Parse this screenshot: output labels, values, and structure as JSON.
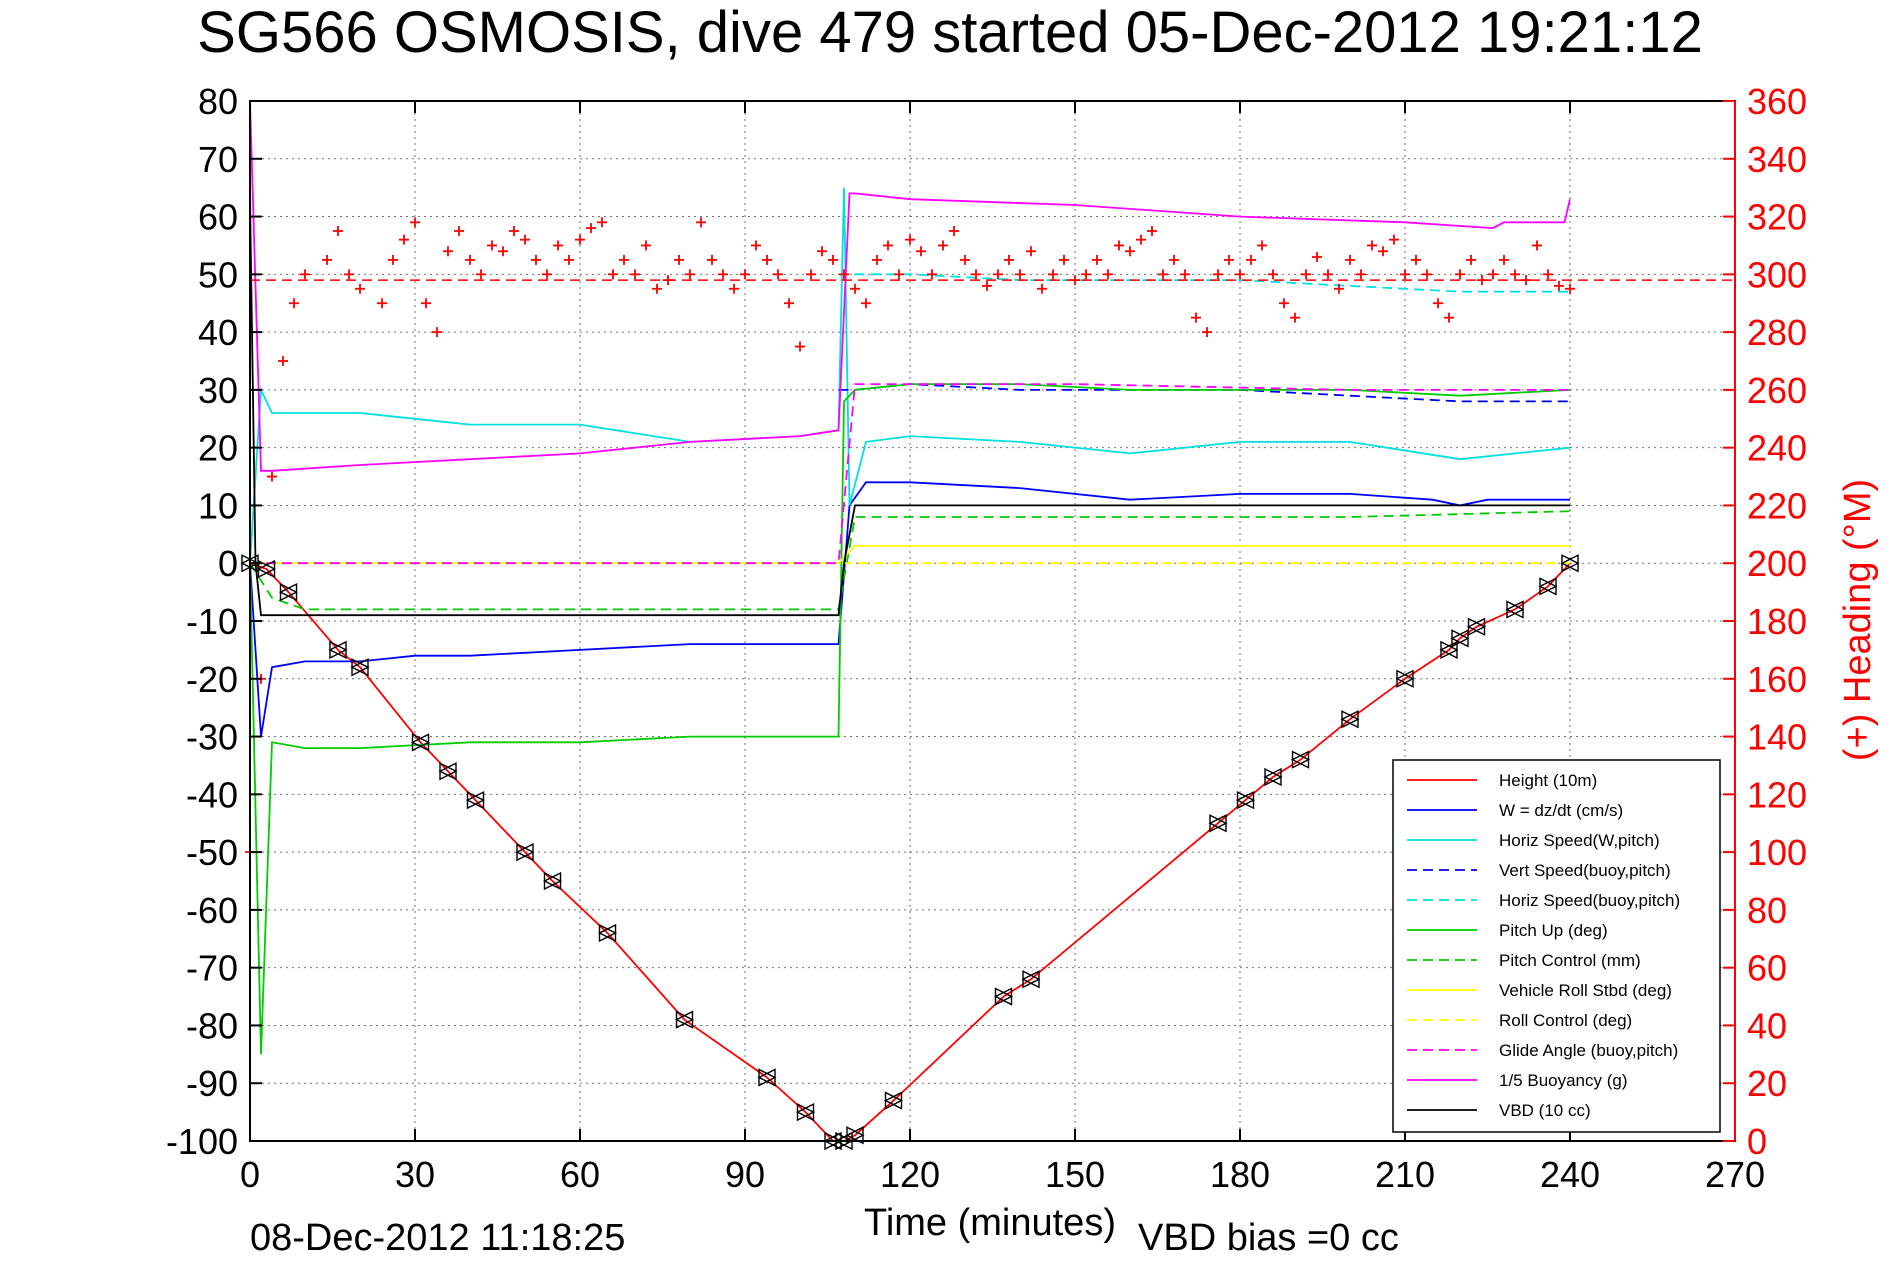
{
  "chart_data": {
    "type": "line",
    "title": "SG566 OSMOSIS, dive 479 started 05-Dec-2012 19:21:12",
    "xlabel": "Time (minutes)",
    "ylabel_right": "(+) Heading (°M)",
    "xlim": [
      0,
      270
    ],
    "ylim": [
      -100,
      80
    ],
    "ylim_right": [
      0,
      360
    ],
    "x_ticks": [
      "0",
      "30",
      "60",
      "90",
      "120",
      "150",
      "180",
      "210",
      "240",
      "270"
    ],
    "y_ticks": [
      "80",
      "70",
      "60",
      "50",
      "40",
      "30",
      "20",
      "10",
      "0",
      "-10",
      "-20",
      "-30",
      "-40",
      "-50",
      "-60",
      "-70",
      "-80",
      "-90",
      "-100"
    ],
    "y_right_ticks": [
      "360",
      "340",
      "320",
      "300",
      "280",
      "260",
      "240",
      "220",
      "200",
      "180",
      "160",
      "140",
      "120",
      "100",
      "80",
      "60",
      "40",
      "20",
      "0"
    ],
    "grid": true,
    "legend_position": "bottom-right",
    "footer_left": "08-Dec-2012 11:18:25",
    "footer_right": "VBD bias =0 cc",
    "series": [
      {
        "name": "Height (10m)",
        "color": "#ff0000",
        "style": "solid",
        "x": [
          0,
          3,
          7,
          16,
          20,
          31,
          36,
          41,
          50,
          55,
          65,
          79,
          94,
          101,
          106,
          108,
          110,
          117,
          137,
          142,
          176,
          181,
          186,
          191,
          200,
          210,
          218,
          220,
          223,
          230,
          236,
          240
        ],
        "y": [
          0,
          -1,
          -5,
          -15,
          -18,
          -31,
          -36,
          -41,
          -50,
          -55,
          -64,
          -79,
          -89,
          -95,
          -100,
          -100,
          -99,
          -93,
          -75,
          -72,
          -45,
          -41,
          -37,
          -34,
          -27,
          -20,
          -15,
          -13,
          -11,
          -8,
          -4,
          0
        ]
      },
      {
        "name": "W = dz/dt (cm/s)",
        "color": "#0000ff",
        "style": "solid",
        "x": [
          0,
          2,
          4,
          10,
          20,
          30,
          40,
          60,
          80,
          100,
          107,
          109,
          112,
          120,
          140,
          160,
          180,
          200,
          215,
          220,
          225,
          240
        ],
        "y": [
          0,
          -30,
          -18,
          -17,
          -17,
          -16,
          -16,
          -15,
          -14,
          -14,
          -14,
          10,
          14,
          14,
          13,
          11,
          12,
          12,
          11,
          10,
          11,
          11
        ]
      },
      {
        "name": "Horiz Speed(W,pitch)",
        "color": "#00e0e0",
        "style": "solid",
        "x": [
          0,
          2,
          4,
          10,
          20,
          30,
          40,
          60,
          80,
          100,
          107,
          108,
          109,
          112,
          120,
          140,
          160,
          180,
          200,
          220,
          240
        ],
        "y": [
          0,
          30,
          26,
          26,
          26,
          25,
          24,
          24,
          21,
          22,
          23,
          65,
          10,
          21,
          22,
          21,
          19,
          21,
          21,
          18,
          20
        ]
      },
      {
        "name": "Vert Speed(buoy,pitch)",
        "color": "#0000ff",
        "style": "dashed",
        "x": [
          107,
          110,
          120,
          140,
          160,
          180,
          200,
          220,
          240
        ],
        "y": [
          30,
          30,
          31,
          30,
          30,
          30,
          29,
          28,
          28
        ]
      },
      {
        "name": "Horiz Speed(buoy,pitch)",
        "color": "#00e0e0",
        "style": "dashed",
        "x": [
          107,
          110,
          120,
          140,
          160,
          180,
          200,
          220,
          240
        ],
        "y": [
          50,
          50,
          50,
          49,
          49,
          49,
          48,
          47,
          47
        ]
      },
      {
        "name": "Pitch Up (deg)",
        "color": "#00cc00",
        "style": "solid",
        "x": [
          0,
          2,
          4,
          10,
          20,
          40,
          60,
          80,
          100,
          106,
          107,
          108,
          110,
          120,
          140,
          160,
          180,
          200,
          220,
          240
        ],
        "y": [
          0,
          -85,
          -31,
          -32,
          -32,
          -31,
          -31,
          -30,
          -30,
          -30,
          -30,
          28,
          30,
          31,
          31,
          30,
          30,
          30,
          29,
          30
        ]
      },
      {
        "name": "Pitch Control (mm)",
        "color": "#00cc00",
        "style": "dashed",
        "x": [
          0,
          4,
          10,
          40,
          80,
          106,
          107,
          110,
          150,
          200,
          240
        ],
        "y": [
          0,
          -6,
          -8,
          -8,
          -8,
          -8,
          -8,
          8,
          8,
          8,
          9
        ]
      },
      {
        "name": "Vehicle Roll Stbd (deg)",
        "color": "#ffff00",
        "style": "solid",
        "x": [
          0,
          5,
          20,
          60,
          100,
          107,
          110,
          150,
          200,
          240
        ],
        "y": [
          0,
          0,
          0,
          0,
          0,
          0,
          3,
          3,
          3,
          3
        ]
      },
      {
        "name": "Roll Control (deg)",
        "color": "#ffff00",
        "style": "dashed",
        "x": [
          0,
          5,
          20,
          60,
          100,
          107,
          110,
          150,
          200,
          240
        ],
        "y": [
          0,
          0,
          0,
          0,
          0,
          0,
          0,
          0,
          0,
          0
        ]
      },
      {
        "name": "Glide Angle (buoy,pitch)",
        "color": "#ff00ff",
        "style": "dashed",
        "x": [
          0,
          107,
          110,
          150,
          200,
          240
        ],
        "y": [
          0,
          0,
          31,
          31,
          30,
          30
        ]
      },
      {
        "name": "1/5 Buoyancy (g)",
        "color": "#ff00ff",
        "style": "solid",
        "x": [
          0,
          2,
          4,
          20,
          40,
          60,
          80,
          100,
          107,
          109,
          110,
          120,
          150,
          180,
          210,
          226,
          228,
          239,
          240
        ],
        "y": [
          80,
          16,
          16,
          17,
          18,
          19,
          21,
          22,
          23,
          64,
          64,
          63,
          62,
          60,
          59,
          58,
          59,
          59,
          63
        ]
      },
      {
        "name": "VBD (10 cc)",
        "color": "#000000",
        "style": "solid",
        "x": [
          0,
          1,
          2,
          4,
          10,
          50,
          100,
          106,
          107,
          108,
          110,
          150,
          200,
          240
        ],
        "y": [
          63,
          0,
          -9,
          -9,
          -9,
          -9,
          -9,
          -9,
          -9,
          0,
          10,
          10,
          10,
          10
        ]
      }
    ],
    "heading": {
      "name": "(+) Heading",
      "color": "#ff0000",
      "marker": "+",
      "target": 298,
      "x": [
        0,
        2,
        4,
        6,
        8,
        10,
        14,
        16,
        18,
        20,
        24,
        26,
        28,
        30,
        32,
        34,
        36,
        38,
        40,
        42,
        44,
        46,
        48,
        50,
        52,
        54,
        56,
        58,
        60,
        62,
        64,
        66,
        68,
        70,
        72,
        74,
        76,
        78,
        80,
        82,
        84,
        86,
        88,
        90,
        92,
        94,
        96,
        98,
        100,
        102,
        104,
        106,
        108,
        110,
        112,
        114,
        116,
        118,
        120,
        122,
        124,
        126,
        128,
        130,
        132,
        134,
        136,
        138,
        140,
        142,
        144,
        146,
        148,
        150,
        152,
        154,
        156,
        158,
        160,
        162,
        164,
        166,
        168,
        170,
        172,
        174,
        176,
        178,
        180,
        182,
        184,
        186,
        188,
        190,
        192,
        194,
        196,
        198,
        200,
        202,
        204,
        206,
        208,
        210,
        212,
        214,
        216,
        218,
        220,
        222,
        224,
        226,
        228,
        230,
        232,
        234,
        236,
        238,
        240
      ],
      "y": [
        100,
        160,
        230,
        270,
        290,
        300,
        305,
        315,
        300,
        295,
        290,
        305,
        312,
        318,
        290,
        280,
        308,
        315,
        305,
        300,
        310,
        308,
        315,
        312,
        305,
        300,
        310,
        305,
        312,
        316,
        318,
        300,
        305,
        300,
        310,
        295,
        298,
        305,
        300,
        318,
        305,
        300,
        295,
        300,
        310,
        305,
        300,
        290,
        275,
        300,
        308,
        305,
        300,
        295,
        290,
        305,
        310,
        300,
        312,
        308,
        300,
        310,
        315,
        305,
        300,
        296,
        300,
        305,
        300,
        308,
        295,
        300,
        305,
        298,
        300,
        305,
        300,
        310,
        308,
        312,
        315,
        300,
        305,
        300,
        285,
        280,
        300,
        305,
        300,
        305,
        310,
        300,
        290,
        285,
        300,
        306,
        300,
        295,
        305,
        300,
        310,
        308,
        312,
        300,
        305,
        300,
        290,
        285,
        300,
        305,
        298,
        300,
        305,
        300,
        298,
        310,
        300,
        296,
        295
      ]
    }
  }
}
